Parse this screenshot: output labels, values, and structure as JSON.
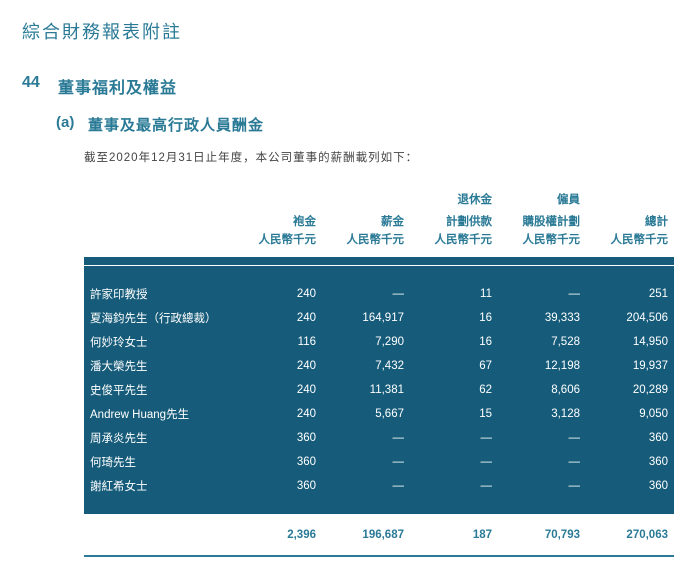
{
  "page_title": "綜合財務報表附註",
  "section": {
    "number": "44",
    "title": "董事福利及權益"
  },
  "subsection": {
    "letter": "(a)",
    "title": "董事及最高行政人員酬金"
  },
  "note_line": "截至2020年12月31日止年度，本公司董事的薪酬載列如下：",
  "columns": [
    {
      "line1": "",
      "line2": "袍金",
      "unit": "人民幣千元"
    },
    {
      "line1": "",
      "line2": "薪金",
      "unit": "人民幣千元"
    },
    {
      "line1": "退休金",
      "line2": "計劃供款",
      "unit": "人民幣千元"
    },
    {
      "line1": "僱員",
      "line2": "購股權計劃",
      "unit": "人民幣千元"
    },
    {
      "line1": "",
      "line2": "總計",
      "unit": "人民幣千元"
    }
  ],
  "rows": [
    {
      "name": "許家印教授",
      "v": [
        "240",
        "—",
        "11",
        "—",
        "251"
      ]
    },
    {
      "name": "夏海鈞先生（行政總裁）",
      "v": [
        "240",
        "164,917",
        "16",
        "39,333",
        "204,506"
      ]
    },
    {
      "name": "何妙玲女士",
      "v": [
        "116",
        "7,290",
        "16",
        "7,528",
        "14,950"
      ]
    },
    {
      "name": "潘大榮先生",
      "v": [
        "240",
        "7,432",
        "67",
        "12,198",
        "19,937"
      ]
    },
    {
      "name": "史俊平先生",
      "v": [
        "240",
        "11,381",
        "62",
        "8,606",
        "20,289"
      ]
    },
    {
      "name": "Andrew Huang先生",
      "v": [
        "240",
        "5,667",
        "15",
        "3,128",
        "9,050"
      ]
    },
    {
      "name": "周承炎先生",
      "v": [
        "360",
        "—",
        "—",
        "—",
        "360"
      ]
    },
    {
      "name": "何琦先生",
      "v": [
        "360",
        "—",
        "—",
        "—",
        "360"
      ]
    },
    {
      "name": "謝紅希女士",
      "v": [
        "360",
        "—",
        "—",
        "—",
        "360"
      ]
    }
  ],
  "totals": [
    "2,396",
    "196,687",
    "187",
    "70,793",
    "270,063"
  ],
  "palette": {
    "accent": "#2a7a96",
    "dark_block": "#165c7a",
    "text_light": "#ffffff",
    "text_muted": "#444444",
    "rule_light": "#999999"
  }
}
